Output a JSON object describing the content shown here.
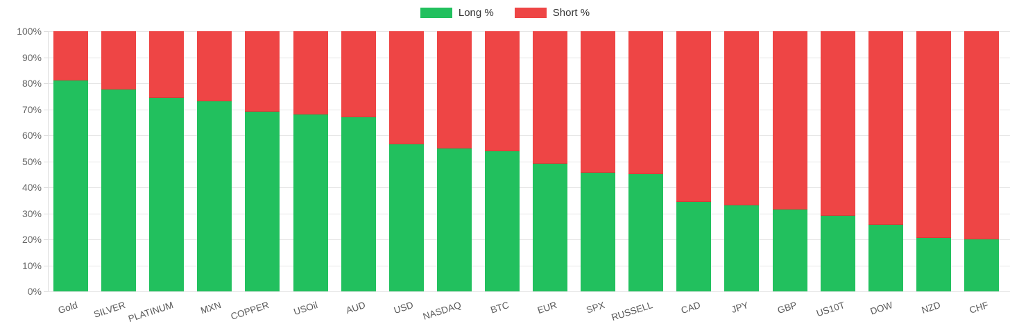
{
  "colors": {
    "long": "#22c05e",
    "short": "#ee4545",
    "grid": "#e5e5e5",
    "axis_text": "#666666",
    "x_axis_text": "#595959",
    "legend_text": "#333333",
    "background": "#ffffff"
  },
  "legend": {
    "items": [
      {
        "label": "Long %",
        "color_key": "long"
      },
      {
        "label": "Short %",
        "color_key": "short"
      }
    ]
  },
  "chart_data": {
    "type": "bar",
    "stacked": true,
    "title": "",
    "xlabel": "",
    "ylabel": "",
    "ylim": [
      0,
      100
    ],
    "grid": true,
    "legend_position": "top",
    "y_ticks": [
      "0%",
      "10%",
      "20%",
      "30%",
      "40%",
      "50%",
      "60%",
      "70%",
      "80%",
      "90%",
      "100%"
    ],
    "categories": [
      "Gold",
      "SILVER",
      "PLATINUM",
      "MXN",
      "COPPER",
      "USOil",
      "AUD",
      "USD",
      "NASDAQ",
      "BTC",
      "EUR",
      "SPX",
      "RUSSELL",
      "CAD",
      "JPY",
      "GBP",
      "US10T",
      "DOW",
      "NZD",
      "CHF"
    ],
    "series": [
      {
        "name": "Long %",
        "color_key": "long",
        "values": [
          81,
          77.5,
          74.5,
          73,
          69,
          68,
          67,
          56.5,
          55,
          54,
          49,
          45.5,
          45,
          34.5,
          33,
          31.5,
          29,
          25.5,
          20.5,
          20
        ]
      },
      {
        "name": "Short %",
        "color_key": "short",
        "values": [
          19,
          22.5,
          25.5,
          27,
          31,
          32,
          33,
          43.5,
          45,
          46,
          51,
          54.5,
          55,
          65.5,
          67,
          68.5,
          71,
          74.5,
          79.5,
          80
        ]
      }
    ]
  }
}
